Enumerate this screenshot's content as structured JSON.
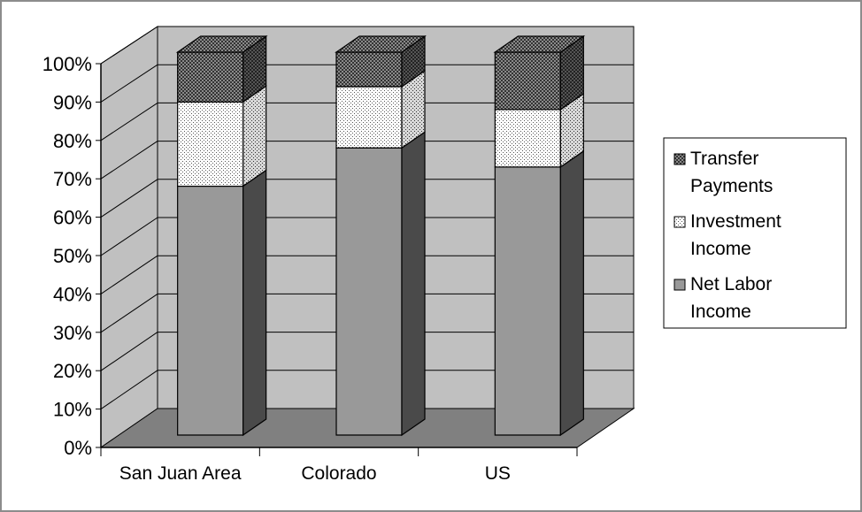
{
  "chart_data": {
    "type": "bar",
    "stacked": true,
    "percent_stacked": true,
    "three_d": true,
    "categories": [
      "San Juan Area",
      "Colorado",
      "US"
    ],
    "series": [
      {
        "name": "Net Labor Income",
        "values": [
          65,
          75,
          70
        ]
      },
      {
        "name": "Investment Income",
        "values": [
          22,
          16,
          15
        ]
      },
      {
        "name": "Transfer Payments",
        "values": [
          13,
          9,
          15
        ]
      }
    ],
    "y_ticks": [
      "0%",
      "10%",
      "20%",
      "30%",
      "40%",
      "50%",
      "60%",
      "70%",
      "80%",
      "90%",
      "100%"
    ],
    "ylim": [
      0,
      100
    ],
    "grid": true,
    "legend_position": "right",
    "legend_entries": [
      {
        "lines": [
          "Transfer",
          "Payments"
        ],
        "series": "Transfer Payments"
      },
      {
        "lines": [
          "Investment",
          "Income"
        ],
        "series": "Investment Income"
      },
      {
        "lines": [
          "Net Labor",
          "Income"
        ],
        "series": "Net Labor Income"
      }
    ],
    "colors": {
      "Net Labor Income": "#999999",
      "Investment Income": "#ffffff",
      "Transfer Payments": "#8a8a8a",
      "back_wall": "#c0c0c0",
      "floor": "#808080",
      "side_wall": "#c0c0c0"
    }
  }
}
